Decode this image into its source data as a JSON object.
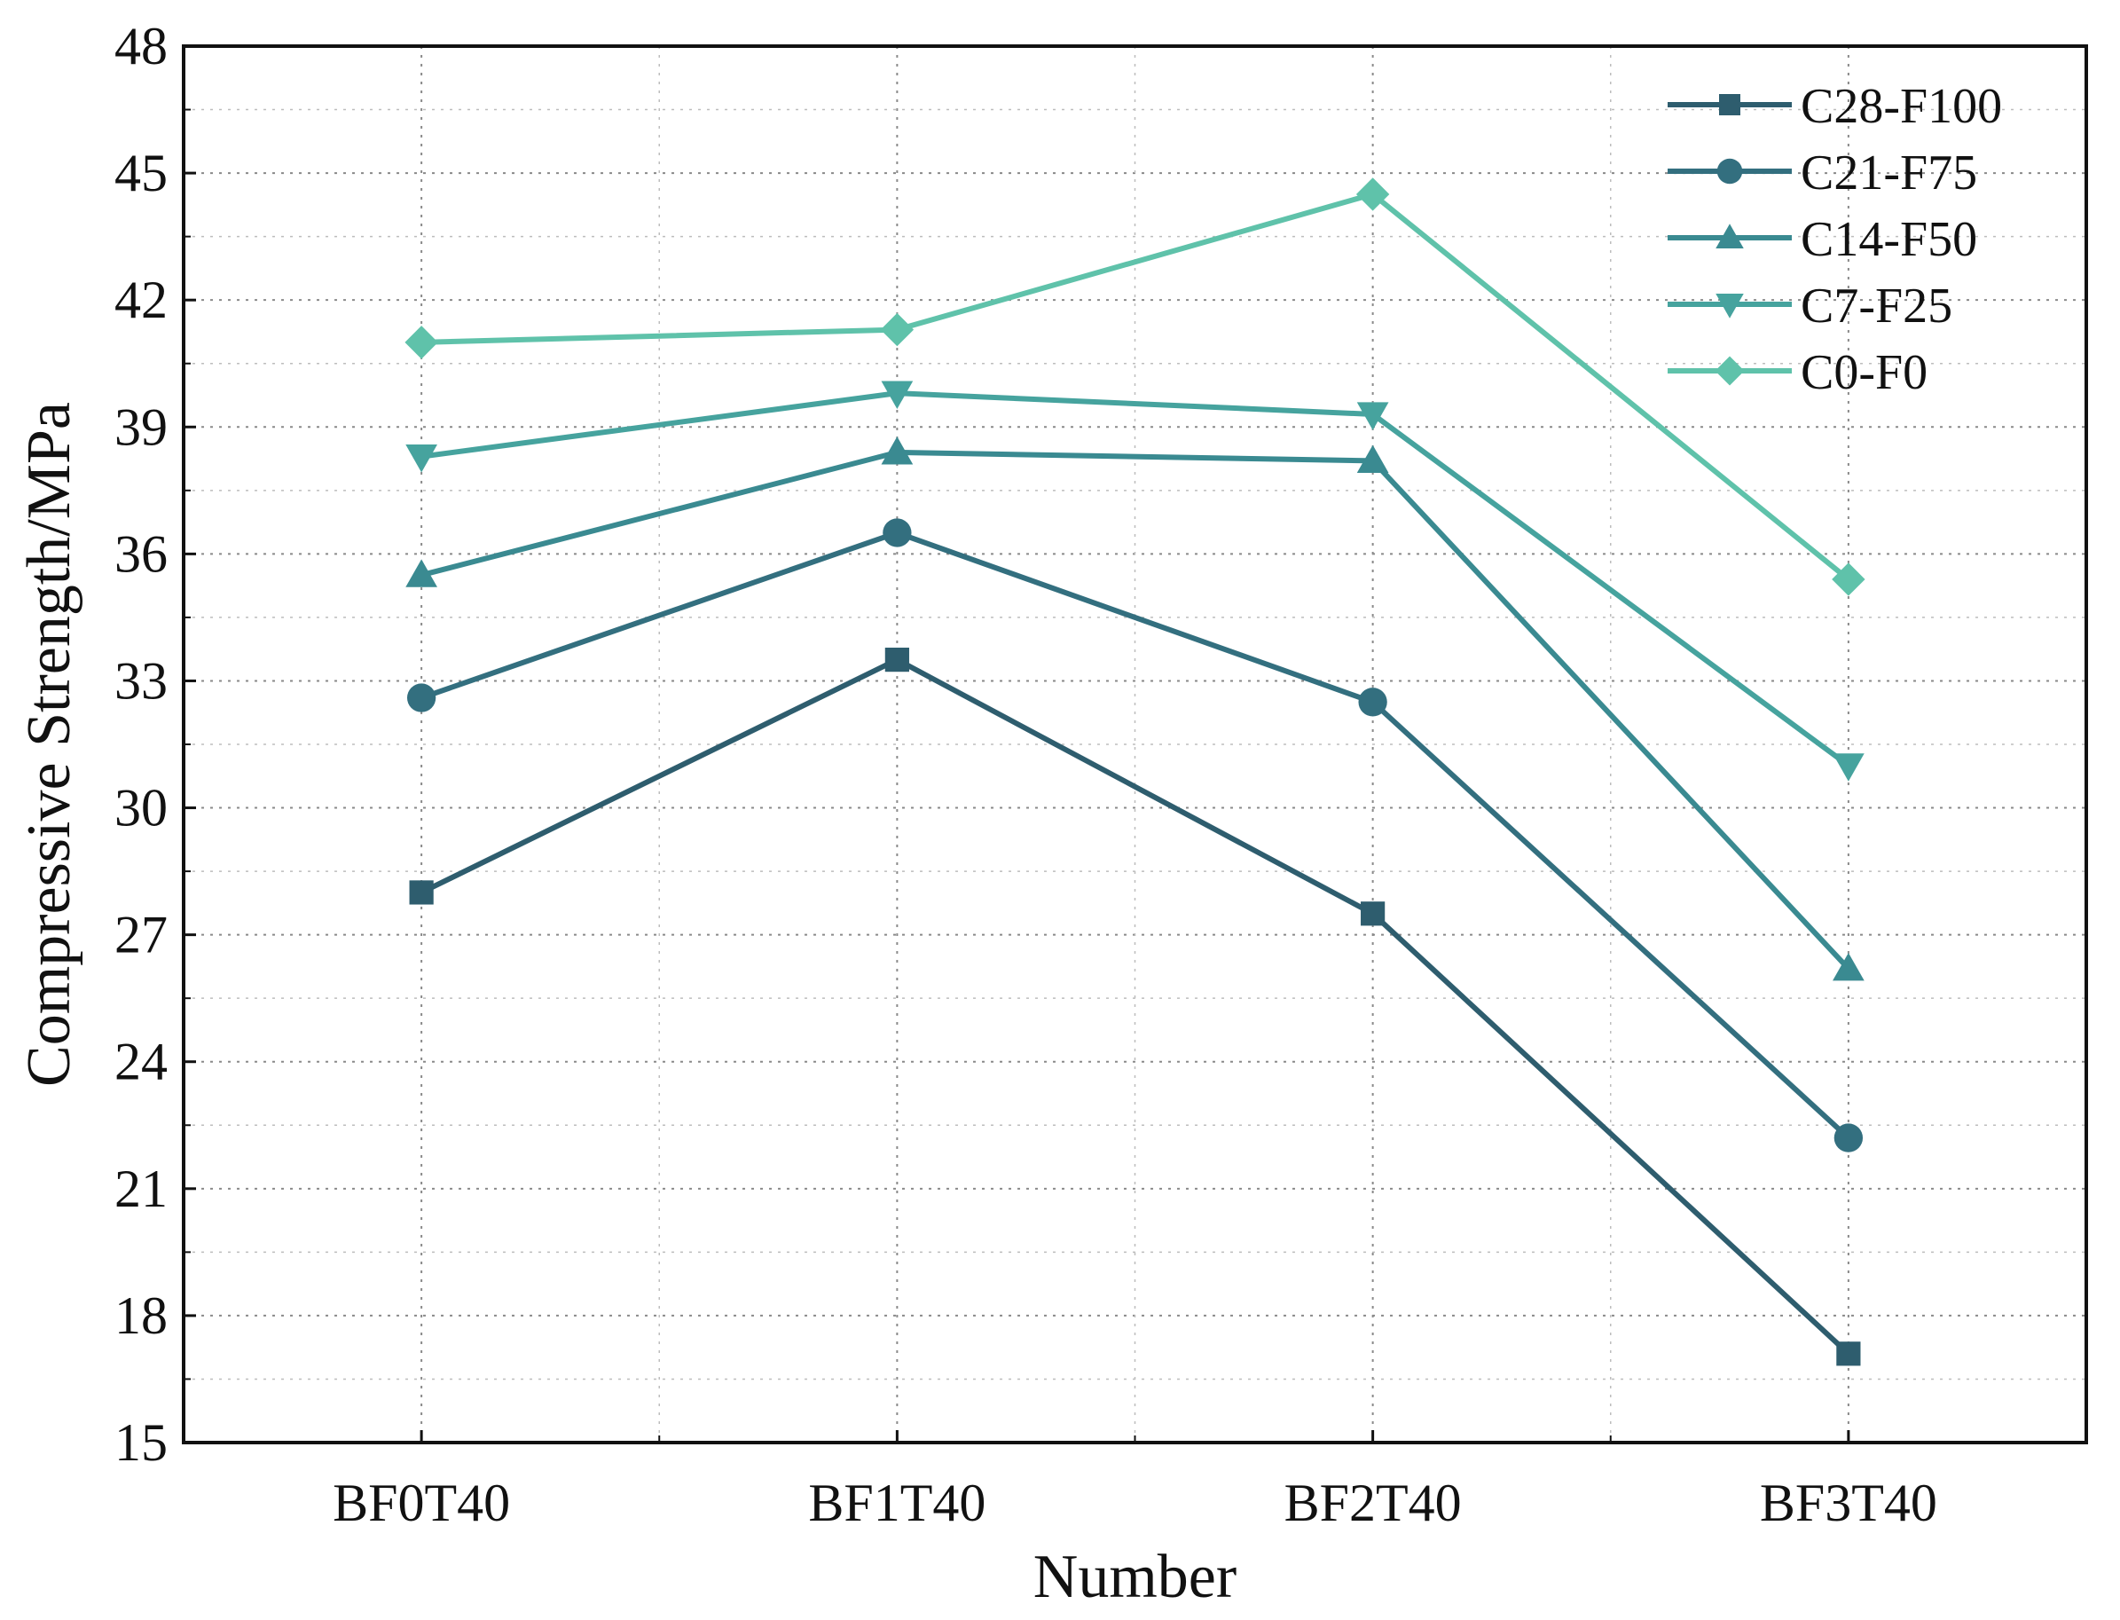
{
  "chart_data": {
    "type": "line",
    "title": "",
    "xlabel": "Number",
    "ylabel": "Compressive Strength/MPa",
    "categories": [
      "BF0T40",
      "BF1T40",
      "BF2T40",
      "BF3T40"
    ],
    "ylim": [
      15,
      48
    ],
    "yticks": [
      15,
      18,
      21,
      24,
      27,
      30,
      33,
      36,
      39,
      42,
      45,
      48
    ],
    "grid": true,
    "legend_position": "top-right",
    "series": [
      {
        "name": "C28-F100",
        "marker": "square",
        "color": "#2e5d6e",
        "values": [
          28.0,
          33.5,
          27.5,
          17.1
        ]
      },
      {
        "name": "C21-F75",
        "marker": "circle",
        "color": "#336f7f",
        "values": [
          32.6,
          36.5,
          32.5,
          22.2
        ]
      },
      {
        "name": "C14-F50",
        "marker": "triangle-up",
        "color": "#3a8a91",
        "values": [
          35.5,
          38.4,
          38.2,
          26.2
        ]
      },
      {
        "name": "C7-F25",
        "marker": "triangle-down",
        "color": "#46a39e",
        "values": [
          38.3,
          39.8,
          39.3,
          31.0
        ]
      },
      {
        "name": "C0-F0",
        "marker": "diamond",
        "color": "#5fc2aa",
        "values": [
          41.0,
          41.3,
          44.5,
          35.4
        ]
      }
    ]
  }
}
